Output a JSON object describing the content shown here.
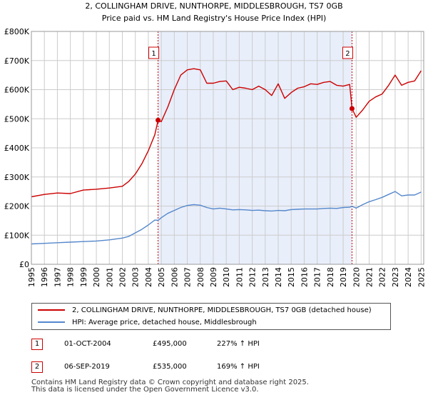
{
  "title_line1": "2, COLLINGHAM DRIVE, NUNTHORPE, MIDDLESBROUGH, TS7 0GB",
  "title_line2": "Price paid vs. HM Land Registry's House Price Index (HPI)",
  "colors": {
    "property": "#cc0000",
    "hpi": "#5588cc",
    "shade": "#e8eefa",
    "grid": "#cccccc",
    "marker": "#cc0000"
  },
  "legend": {
    "property": "2, COLLINGHAM DRIVE, NUNTHORPE, MIDDLESBROUGH, TS7 0GB (detached house)",
    "hpi": "HPI: Average price, detached house, Middlesbrough"
  },
  "transactions": [
    {
      "num": "1",
      "date": "01-OCT-2004",
      "price": "£495,000",
      "hpi": "227% ↑ HPI"
    },
    {
      "num": "2",
      "date": "06-SEP-2019",
      "price": "£535,000",
      "hpi": "169% ↑ HPI"
    }
  ],
  "footer_line1": "Contains HM Land Registry data © Crown copyright and database right 2025.",
  "footer_line2": "This data is licensed under the Open Government Licence v3.0.",
  "chart_data": {
    "type": "line",
    "title": "2, COLLINGHAM DRIVE, NUNTHORPE, MIDDLESBROUGH, TS7 0GB",
    "subtitle": "Price paid vs. HM Land Registry's House Price Index (HPI)",
    "xlim": [
      1995,
      2025.2
    ],
    "ylim": [
      0,
      800000
    ],
    "y_ticks": [
      0,
      100000,
      200000,
      300000,
      400000,
      500000,
      600000,
      700000,
      800000
    ],
    "y_tick_labels": [
      "£0",
      "£100K",
      "£200K",
      "£300K",
      "£400K",
      "£500K",
      "£600K",
      "£700K",
      "£800K"
    ],
    "x_ticks": [
      1995,
      1996,
      1997,
      1998,
      1999,
      2000,
      2001,
      2002,
      2003,
      2004,
      2005,
      2006,
      2007,
      2008,
      2009,
      2010,
      2011,
      2012,
      2013,
      2014,
      2015,
      2016,
      2017,
      2018,
      2019,
      2020,
      2021,
      2022,
      2023,
      2024,
      2025
    ],
    "x_tick_labels": [
      "1995",
      "1996",
      "1997",
      "1998",
      "1999",
      "2000",
      "2001",
      "2002",
      "2003",
      "2004",
      "2005",
      "2006",
      "2007",
      "2008",
      "2009",
      "2010",
      "2011",
      "2012",
      "2013",
      "2014",
      "2015",
      "2016",
      "2017",
      "2018",
      "2019",
      "2020",
      "2021",
      "2022",
      "2023",
      "2024",
      "2025"
    ],
    "shaded_span": [
      2004.75,
      2019.68
    ],
    "events": [
      {
        "label": "1",
        "x": 2004.75,
        "y": 495000
      },
      {
        "label": "2",
        "x": 2019.68,
        "y": 535000
      }
    ],
    "series": [
      {
        "name": "2, COLLINGHAM DRIVE, NUNTHORPE, MIDDLESBROUGH, TS7 0GB (detached house)",
        "x": [
          1995,
          1996,
          1997,
          1998,
          1999,
          2000,
          2001,
          2002,
          2002.5,
          2003,
          2003.5,
          2004,
          2004.5,
          2004.75,
          2005,
          2005.5,
          2006,
          2006.5,
          2007,
          2007.5,
          2008,
          2008.5,
          2009,
          2009.5,
          2010,
          2010.5,
          2011,
          2011.5,
          2012,
          2012.5,
          2013,
          2013.5,
          2014,
          2014.5,
          2015,
          2015.5,
          2016,
          2016.5,
          2017,
          2017.5,
          2018,
          2018.5,
          2019,
          2019.5,
          2019.68,
          2020,
          2020.5,
          2021,
          2021.5,
          2022,
          2022.5,
          2023,
          2023.5,
          2024,
          2024.5,
          2025
        ],
        "values": [
          232000,
          240000,
          245000,
          243000,
          255000,
          258000,
          262000,
          268000,
          285000,
          310000,
          345000,
          390000,
          445000,
          495000,
          490000,
          540000,
          600000,
          650000,
          668000,
          672000,
          668000,
          622000,
          622000,
          628000,
          630000,
          600000,
          608000,
          605000,
          600000,
          612000,
          600000,
          580000,
          620000,
          570000,
          590000,
          605000,
          610000,
          620000,
          618000,
          625000,
          628000,
          615000,
          612000,
          618000,
          535000,
          505000,
          530000,
          560000,
          575000,
          585000,
          615000,
          650000,
          615000,
          625000,
          630000,
          665000
        ]
      },
      {
        "name": "HPI: Average price, detached house, Middlesbrough",
        "x": [
          1995,
          1996,
          1997,
          1998,
          1999,
          2000,
          2001,
          2002,
          2002.5,
          2003,
          2003.5,
          2004,
          2004.5,
          2004.75,
          2005,
          2005.5,
          2006,
          2006.5,
          2007,
          2007.5,
          2008,
          2008.5,
          2009,
          2009.5,
          2010,
          2010.5,
          2011,
          2011.5,
          2012,
          2012.5,
          2013,
          2013.5,
          2014,
          2014.5,
          2015,
          2015.5,
          2016,
          2016.5,
          2017,
          2017.5,
          2018,
          2018.5,
          2019,
          2019.5,
          2019.68,
          2020,
          2020.5,
          2021,
          2021.5,
          2022,
          2022.5,
          2023,
          2023.5,
          2024,
          2024.5,
          2025
        ],
        "values": [
          70000,
          72000,
          74000,
          76000,
          78000,
          80000,
          84000,
          90000,
          96000,
          108000,
          120000,
          135000,
          152000,
          151000,
          160000,
          175000,
          185000,
          195000,
          202000,
          205000,
          203000,
          195000,
          190000,
          193000,
          190000,
          187000,
          188000,
          187000,
          185000,
          186000,
          184000,
          183000,
          185000,
          184000,
          188000,
          189000,
          190000,
          190000,
          190000,
          192000,
          193000,
          192000,
          195000,
          196000,
          199000,
          193000,
          205000,
          215000,
          222000,
          230000,
          240000,
          250000,
          235000,
          238000,
          238000,
          248000
        ]
      }
    ]
  }
}
